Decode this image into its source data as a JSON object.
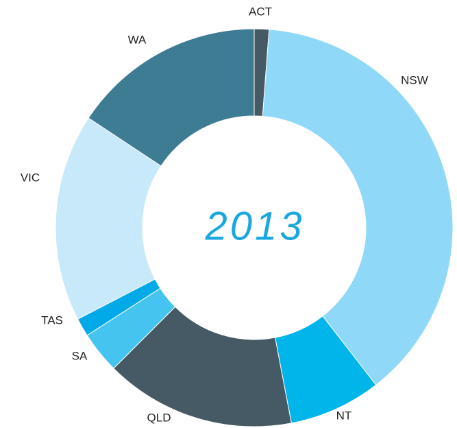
{
  "chart_data": {
    "type": "donut",
    "center_label": "2013",
    "categories": [
      "ACT",
      "NSW",
      "NT",
      "QLD",
      "SA",
      "TAS",
      "VIC",
      "WA"
    ],
    "values": [
      1.2,
      38.3,
      7.5,
      15.5,
      3.4,
      1.5,
      16.9,
      15.7
    ],
    "colors": [
      "#455a64",
      "#90d8f7",
      "#00b5ea",
      "#455a64",
      "#45c4f0",
      "#00a9e8",
      "#c8e9f9",
      "#3e7c94"
    ]
  }
}
